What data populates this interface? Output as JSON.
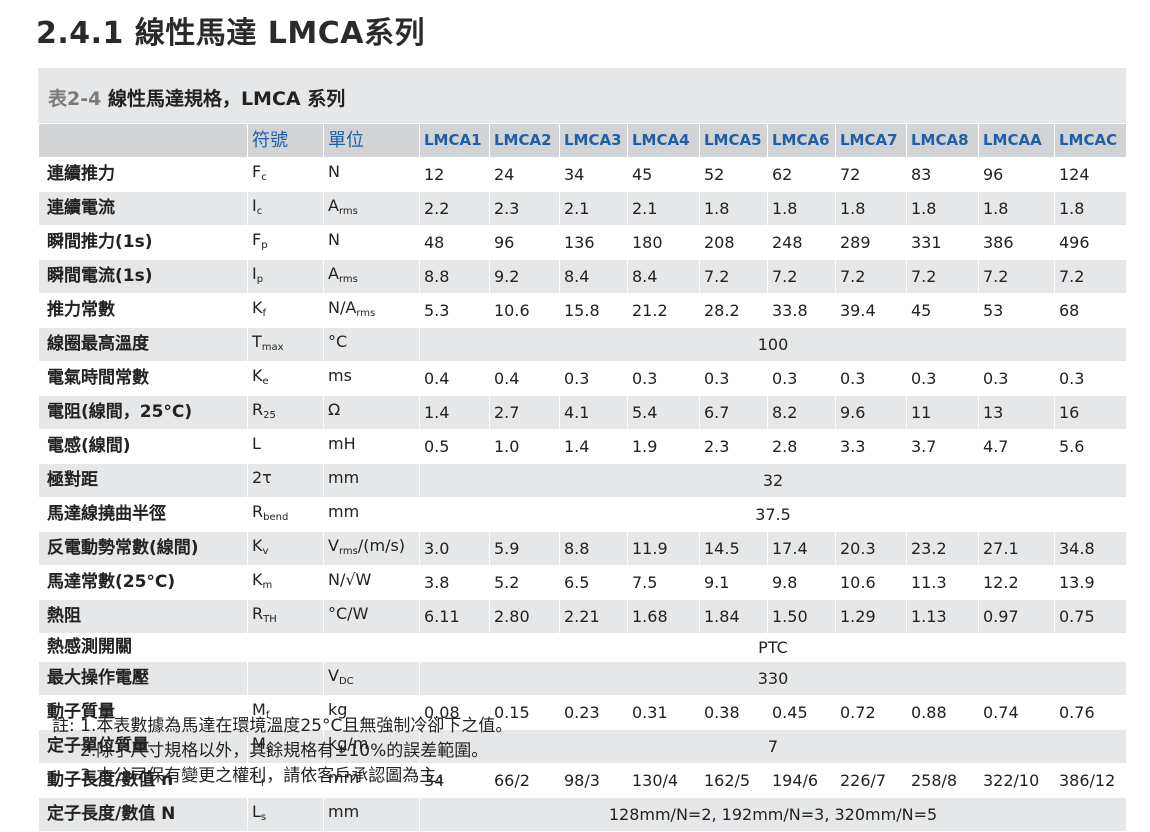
{
  "title": "2.4.1 線性馬達 LMCA系列",
  "table": {
    "caption_num": "表2-4",
    "caption_text": "線性馬達規格，LMCA 系列",
    "header": {
      "symbol": "符號",
      "unit": "單位",
      "models": [
        "LMCA1",
        "LMCA2",
        "LMCA3",
        "LMCA4",
        "LMCA5",
        "LMCA6",
        "LMCA7",
        "LMCA8",
        "LMCAA",
        "LMCAC"
      ]
    },
    "rows": [
      {
        "name": "連續推力",
        "sym": "F",
        "sub": "c",
        "unit": "N",
        "unit_sub": "",
        "values": [
          "12",
          "24",
          "34",
          "45",
          "52",
          "62",
          "72",
          "83",
          "96",
          "124"
        ]
      },
      {
        "name": "連續電流",
        "sym": "I",
        "sub": "c",
        "unit": "A",
        "unit_sub": "rms",
        "values": [
          "2.2",
          "2.3",
          "2.1",
          "2.1",
          "1.8",
          "1.8",
          "1.8",
          "1.8",
          "1.8",
          "1.8"
        ]
      },
      {
        "name": "瞬間推力(1s)",
        "sym": "F",
        "sub": "p",
        "unit": "N",
        "unit_sub": "",
        "values": [
          "48",
          "96",
          "136",
          "180",
          "208",
          "248",
          "289",
          "331",
          "386",
          "496"
        ]
      },
      {
        "name": "瞬間電流(1s)",
        "sym": "I",
        "sub": "p",
        "unit": "A",
        "unit_sub": "rms",
        "values": [
          "8.8",
          "9.2",
          "8.4",
          "8.4",
          "7.2",
          "7.2",
          "7.2",
          "7.2",
          "7.2",
          "7.2"
        ]
      },
      {
        "name": "推力常數",
        "sym": "K",
        "sub": "f",
        "unit": "N/A",
        "unit_sub": "rms",
        "values": [
          "5.3",
          "10.6",
          "15.8",
          "21.2",
          "28.2",
          "33.8",
          "39.4",
          "45",
          "53",
          "68"
        ]
      },
      {
        "name": "線圈最高溫度",
        "sym": "T",
        "sub": "max",
        "unit": "°C",
        "unit_sub": "",
        "merged": "100"
      },
      {
        "name": "電氣時間常數",
        "sym": "K",
        "sub": "e",
        "unit": "ms",
        "unit_sub": "",
        "values": [
          "0.4",
          "0.4",
          "0.3",
          "0.3",
          "0.3",
          "0.3",
          "0.3",
          "0.3",
          "0.3",
          "0.3"
        ]
      },
      {
        "name": "電阻(線間，25°C)",
        "sym": "R",
        "sub": "25",
        "unit": "Ω",
        "unit_sub": "",
        "values": [
          "1.4",
          "2.7",
          "4.1",
          "5.4",
          "6.7",
          "8.2",
          "9.6",
          "11",
          "13",
          "16"
        ]
      },
      {
        "name": "電感(線間)",
        "sym": "L",
        "sub": "",
        "unit": "mH",
        "unit_sub": "",
        "values": [
          "0.5",
          "1.0",
          "1.4",
          "1.9",
          "2.3",
          "2.8",
          "3.3",
          "3.7",
          "4.7",
          "5.6"
        ]
      },
      {
        "name": "極對距",
        "sym": "2τ",
        "sub": "",
        "unit": "mm",
        "unit_sub": "",
        "merged": "32"
      },
      {
        "name": "馬達線撓曲半徑",
        "sym": "R",
        "sub": "bend",
        "unit": "mm",
        "unit_sub": "",
        "merged": "37.5"
      },
      {
        "name": "反電動勢常數(線間)",
        "sym": "K",
        "sub": "v",
        "unit": "V",
        "unit_sub": "rms",
        "unit_tail": "/(m/s)",
        "values": [
          "3.0",
          "5.9",
          "8.8",
          "11.9",
          "14.5",
          "17.4",
          "20.3",
          "23.2",
          "27.1",
          "34.8"
        ]
      },
      {
        "name": "馬達常數(25°C)",
        "sym": "K",
        "sub": "m",
        "unit": "N/√W",
        "unit_sub": "",
        "values": [
          "3.8",
          "5.2",
          "6.5",
          "7.5",
          "9.1",
          "9.8",
          "10.6",
          "11.3",
          "12.2",
          "13.9"
        ]
      },
      {
        "name": "熱阻",
        "sym": "R",
        "sub": "TH",
        "unit": "°C/W",
        "unit_sub": "",
        "values": [
          "6.11",
          "2.80",
          "2.21",
          "1.68",
          "1.84",
          "1.50",
          "1.29",
          "1.13",
          "0.97",
          "0.75"
        ]
      },
      {
        "name": "熱感測開關",
        "sym": "",
        "sub": "",
        "unit": "",
        "unit_sub": "",
        "merged": "PTC"
      },
      {
        "name": "最大操作電壓",
        "sym": "",
        "sub": "",
        "unit": "V",
        "unit_sub": "DC",
        "merged": "330"
      },
      {
        "name": "動子質量",
        "sym": "M",
        "sub": "f",
        "unit": "kg",
        "unit_sub": "",
        "values": [
          "0.08",
          "0.15",
          "0.23",
          "0.31",
          "0.38",
          "0.45",
          "0.72",
          "0.88",
          "0.74",
          "0.76"
        ]
      },
      {
        "name": "定子單位質量",
        "sym": "M",
        "sub": "s",
        "unit": "kg/m",
        "unit_sub": "",
        "merged": "7"
      },
      {
        "name": "動子長度/數值 n",
        "sym": "L",
        "sub": "f",
        "unit": "mm",
        "unit_sub": "",
        "values": [
          "34",
          "66/2",
          "98/3",
          "130/4",
          "162/5",
          "194/6",
          "226/7",
          "258/8",
          "322/10",
          "386/12"
        ]
      },
      {
        "name": "定子長度/數值 N",
        "sym": "L",
        "sub": "s",
        "unit": "mm",
        "unit_sub": "",
        "merged": "128mm/N=2, 192mm/N=3, 320mm/N=5"
      }
    ]
  },
  "notes": [
    "註: 1.本表數據為馬達在環境溫度25°C且無強制冷卻下之值。",
    "2.除了尺寸規格以外，其餘規格有±10%的誤差範圍。",
    "3.本公司保有變更之權利，請依客戶承認圖為主。"
  ]
}
